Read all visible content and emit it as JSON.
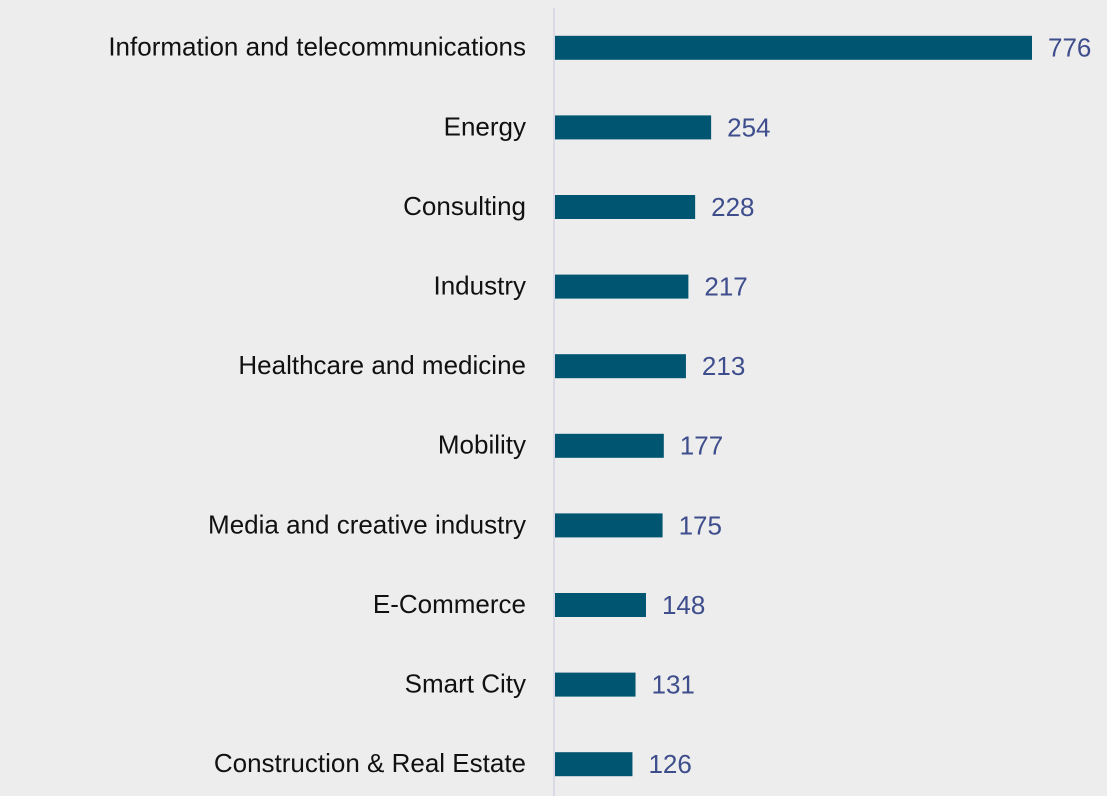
{
  "chart_data": {
    "type": "bar",
    "orientation": "horizontal",
    "categories": [
      "Information and telecommunications",
      "Energy",
      "Consulting",
      "Industry",
      "Healthcare and medicine",
      "Mobility",
      "Media and creative industry",
      "E-Commerce",
      "Smart City",
      "Construction & Real Estate"
    ],
    "values": [
      776,
      254,
      228,
      217,
      213,
      177,
      175,
      148,
      131,
      126
    ],
    "color": "#005571"
  }
}
